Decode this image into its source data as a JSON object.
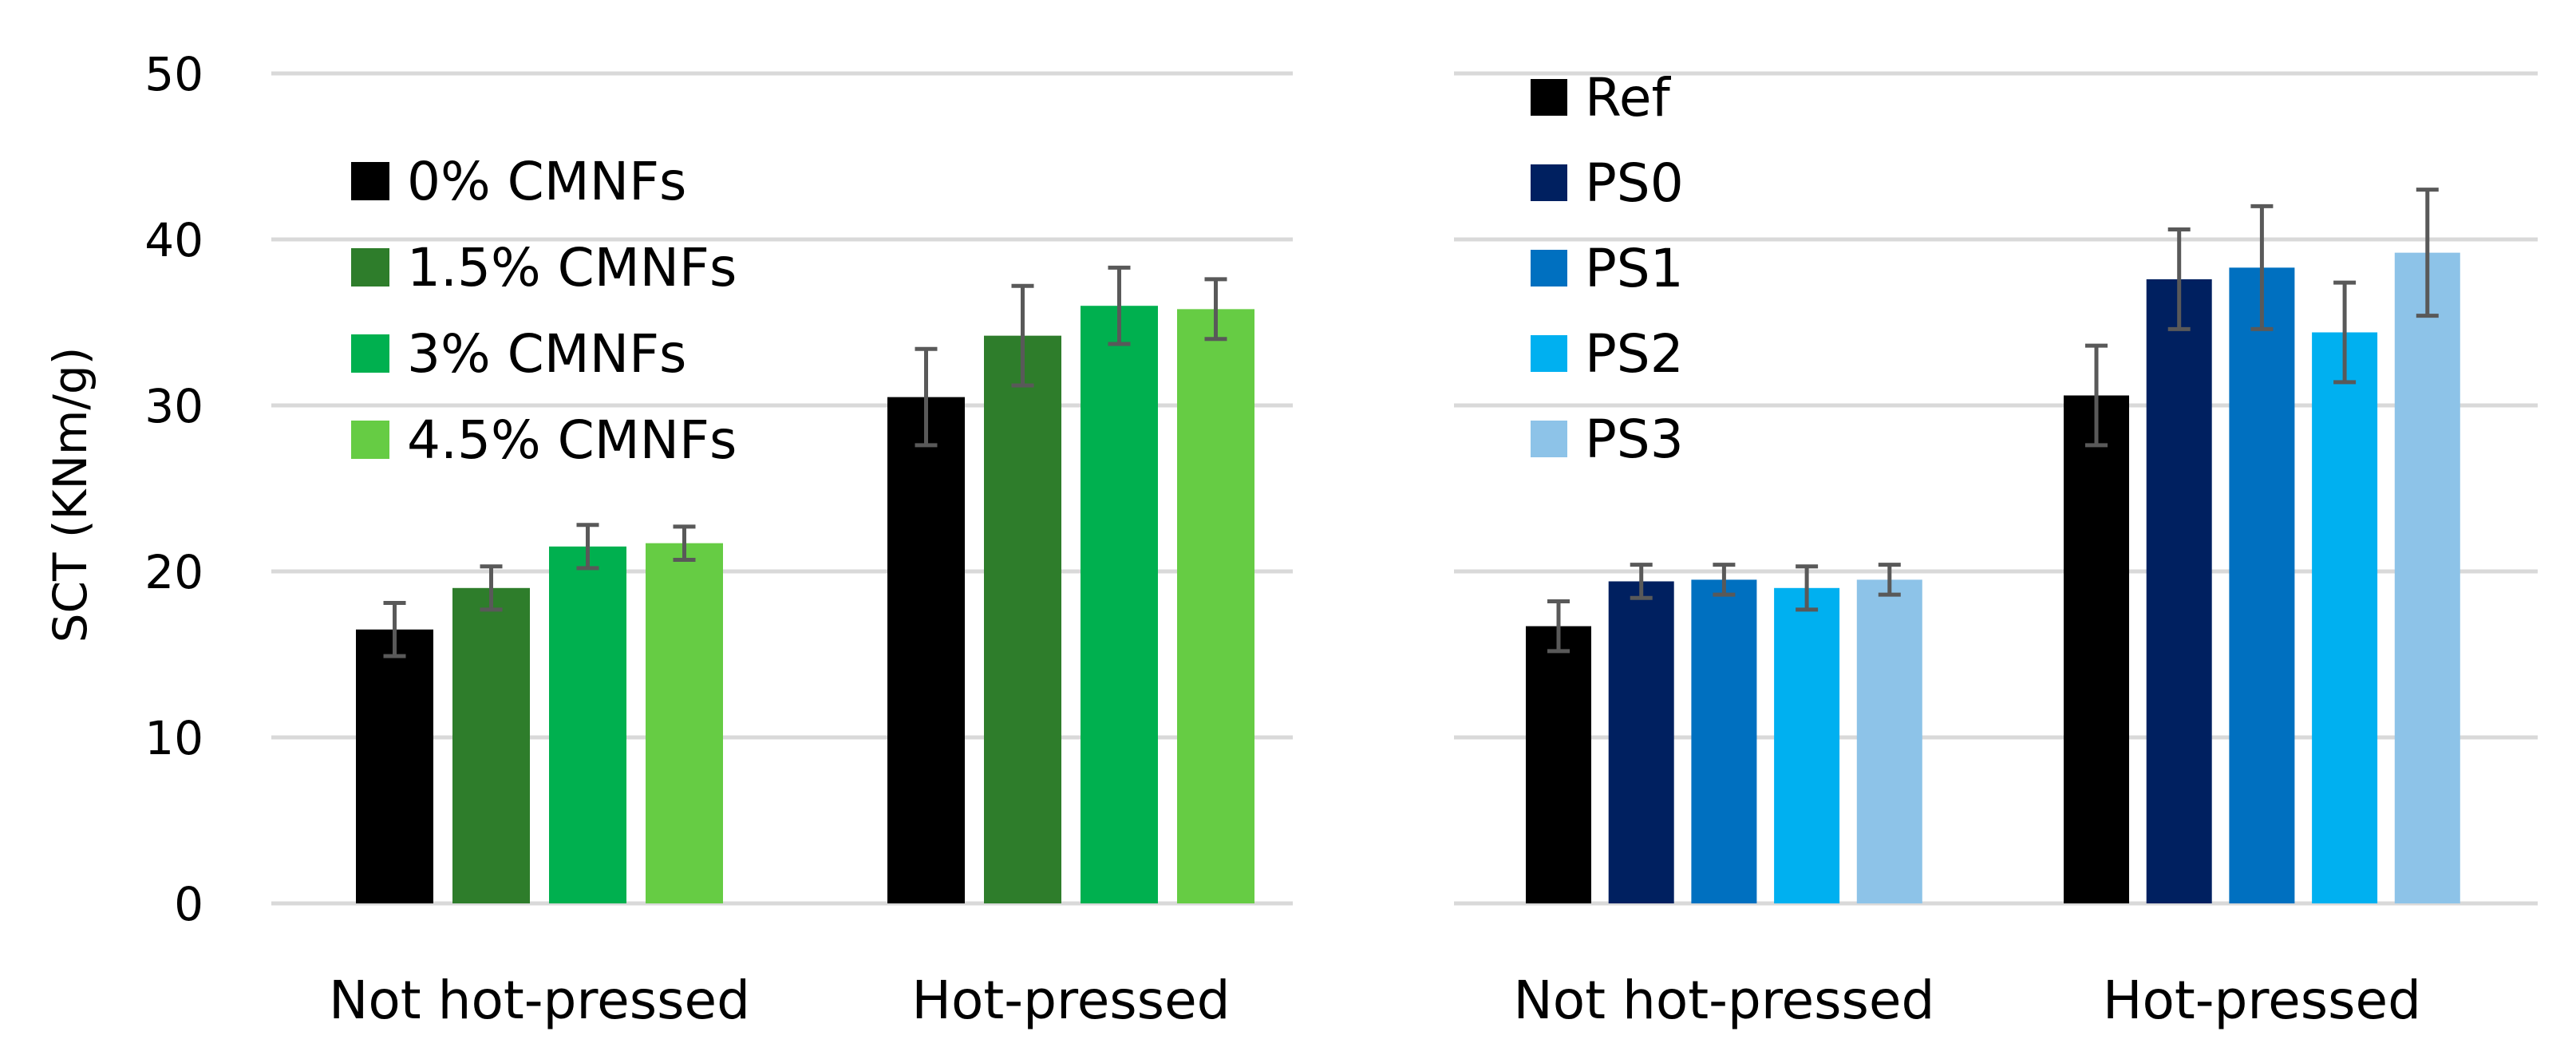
{
  "chart_data": [
    {
      "type": "bar",
      "title": "",
      "xlabel": "",
      "ylabel": "SCT (KNm/g)",
      "ylim": [
        0,
        50
      ],
      "yticks": [
        "0",
        "10",
        "20",
        "30",
        "40",
        "50"
      ],
      "grid": true,
      "legend_position": "top-left",
      "categories": [
        "Not hot-pressed",
        "Hot-pressed"
      ],
      "series": [
        {
          "name": "0% CMNFs",
          "color": "#000000",
          "values": [
            16.5,
            30.5
          ],
          "errors": [
            1.6,
            2.9
          ]
        },
        {
          "name": "1.5% CMNFs",
          "color": "#2e7d2b",
          "values": [
            19.0,
            34.2
          ],
          "errors": [
            1.3,
            3.0
          ]
        },
        {
          "name": "3% CMNFs",
          "color": "#00b04f",
          "values": [
            21.5,
            36.0
          ],
          "errors": [
            1.3,
            2.3
          ]
        },
        {
          "name": "4.5% CMNFs",
          "color": "#66cc44",
          "values": [
            21.7,
            35.8
          ],
          "errors": [
            1.0,
            1.8
          ]
        }
      ]
    },
    {
      "type": "bar",
      "title": "",
      "xlabel": "",
      "ylabel": "",
      "ylim": [
        0,
        50
      ],
      "grid": true,
      "legend_position": "top-left",
      "categories": [
        "Not hot-pressed",
        "Hot-pressed"
      ],
      "series": [
        {
          "name": "Ref",
          "color": "#000000",
          "values": [
            16.7,
            30.6
          ],
          "errors": [
            1.5,
            3.0
          ]
        },
        {
          "name": "PS0",
          "color": "#002060",
          "values": [
            19.4,
            37.6
          ],
          "errors": [
            1.0,
            3.0
          ]
        },
        {
          "name": "PS1",
          "color": "#0070c0",
          "values": [
            19.5,
            38.3
          ],
          "errors": [
            0.9,
            3.7
          ]
        },
        {
          "name": "PS2",
          "color": "#00b0f0",
          "values": [
            19.0,
            34.4
          ],
          "errors": [
            1.3,
            3.0
          ]
        },
        {
          "name": "PS3",
          "color": "#8dc3e8",
          "values": [
            19.5,
            39.2
          ],
          "errors": [
            0.9,
            3.8
          ]
        }
      ]
    }
  ]
}
